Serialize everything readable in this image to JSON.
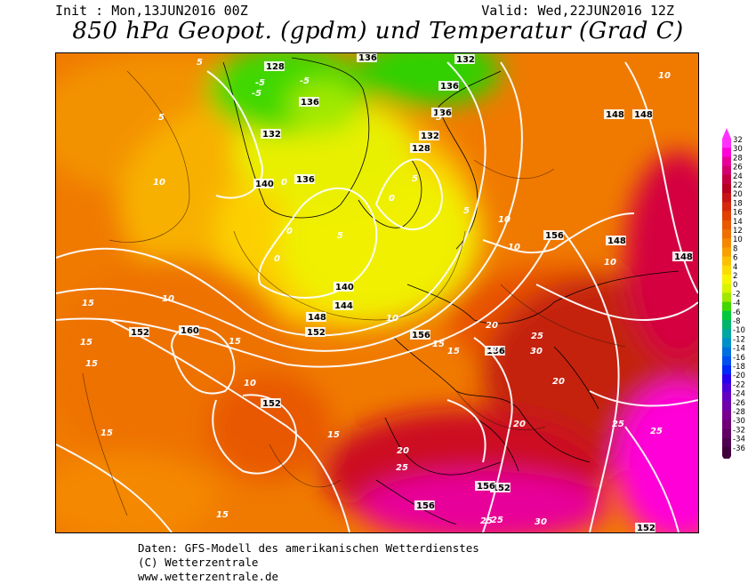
{
  "header": {
    "init": "Init : Mon,13JUN2016 00Z",
    "valid": "Valid: Wed,22JUN2016 12Z",
    "title": "850 hPa Geopot. (gpdm) und Temperatur (Grad C)"
  },
  "legend": {
    "values": [
      "32",
      "30",
      "28",
      "26",
      "24",
      "22",
      "20",
      "18",
      "16",
      "14",
      "12",
      "10",
      "8",
      "6",
      "4",
      "2",
      "0",
      "-2",
      "-4",
      "-6",
      "-8",
      "-10",
      "-12",
      "-14",
      "-16",
      "-18",
      "-20",
      "-22",
      "-24",
      "-26",
      "-28",
      "-30",
      "-32",
      "-34",
      "-36"
    ],
    "colors": [
      "#ff30ff",
      "#ff00d8",
      "#e8009a",
      "#d4006e",
      "#c40040",
      "#b80020",
      "#c81414",
      "#d52a0a",
      "#e04000",
      "#e85a00",
      "#ee7000",
      "#f48800",
      "#f8a000",
      "#fcc000",
      "#fcdc00",
      "#f8f400",
      "#d8f400",
      "#a0e800",
      "#40d800",
      "#00c83c",
      "#00b46e",
      "#00a8a0",
      "#0090c8",
      "#0070e0",
      "#0050f0",
      "#0028f8",
      "#2800f0",
      "#4c00d8",
      "#6400c0",
      "#7000a8",
      "#780090",
      "#700078",
      "#600064",
      "#500050",
      "#40003c"
    ]
  },
  "map": {
    "geopotential_labels": [
      "128",
      "136",
      "136",
      "132",
      "136",
      "132",
      "136",
      "128",
      "132",
      "140",
      "136",
      "140",
      "144",
      "148",
      "152",
      "156",
      "160",
      "152",
      "152",
      "156",
      "152",
      "156",
      "156",
      "148",
      "148",
      "156",
      "148",
      "148",
      "152"
    ],
    "temperature_labels": [
      "5",
      "5",
      "10",
      "10",
      "15",
      "15",
      "15",
      "15",
      "15",
      "15",
      "15",
      "15",
      "10",
      "10",
      "10",
      "10",
      "10",
      "10",
      "15",
      "20",
      "20",
      "20",
      "20",
      "20",
      "25",
      "25",
      "25",
      "25",
      "25",
      "25",
      "30",
      "30",
      "0",
      "0",
      "-5",
      "-5",
      "-5",
      "5",
      "5",
      "5",
      "0",
      "5",
      "0"
    ]
  },
  "footer": {
    "line1": "Daten: GFS-Modell des amerikanischen Wetterdienstes",
    "line2": "(C) Wetterzentrale",
    "line3": "www.wetterzentrale.de"
  }
}
